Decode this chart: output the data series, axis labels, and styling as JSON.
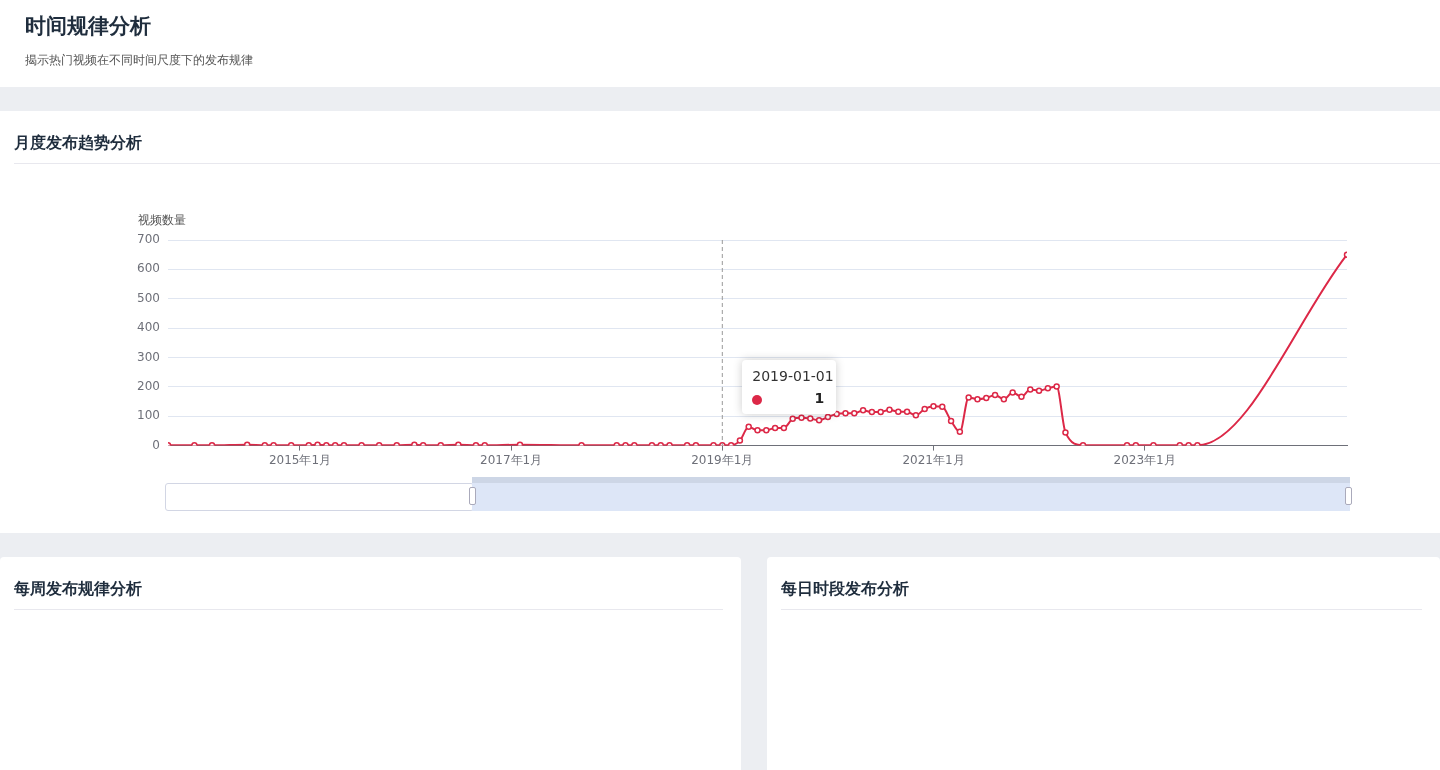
{
  "chart_data": [
    {
      "type": "other",
      "title": "时间规律分析",
      "subtitle": "揭示热门视频在不同时间尺度下的发布规律"
    },
    {
      "type": "line",
      "title": "月度发布趋势分析",
      "ylabel": "视频数量",
      "x": [
        "2013-10",
        "2014-01",
        "2014-03",
        "2014-07",
        "2014-09",
        "2014-10",
        "2014-12",
        "2015-02",
        "2015-03",
        "2015-04",
        "2015-05",
        "2015-06",
        "2015-08",
        "2015-10",
        "2015-12",
        "2016-02",
        "2016-03",
        "2016-05",
        "2016-07",
        "2016-09",
        "2016-10",
        "2017-02",
        "2017-09",
        "2018-01",
        "2018-02",
        "2018-03",
        "2018-05",
        "2018-06",
        "2018-07",
        "2018-09",
        "2018-10",
        "2018-12",
        "2019-01",
        "2019-02",
        "2019-03",
        "2019-04",
        "2019-05",
        "2019-06",
        "2019-07",
        "2019-08",
        "2019-09",
        "2019-10",
        "2019-11",
        "2019-12",
        "2020-01",
        "2020-02",
        "2020-03",
        "2020-04",
        "2020-05",
        "2020-06",
        "2020-07",
        "2020-08",
        "2020-09",
        "2020-10",
        "2020-11",
        "2020-12",
        "2021-01",
        "2021-02",
        "2021-03",
        "2021-04",
        "2021-05",
        "2021-06",
        "2021-07",
        "2021-08",
        "2021-09",
        "2021-10",
        "2021-11",
        "2021-12",
        "2022-01",
        "2022-02",
        "2022-03",
        "2022-04",
        "2022-06",
        "2022-11",
        "2022-12",
        "2023-02",
        "2023-05",
        "2023-06",
        "2023-07",
        "2024-12"
      ],
      "series": [
        {
          "color": "#dc2847",
          "values": [
            1,
            1,
            1,
            3,
            1,
            1,
            1,
            1,
            3,
            1,
            1,
            1,
            1,
            1,
            1,
            3,
            1,
            1,
            3,
            1,
            1,
            3,
            1,
            1,
            1,
            1,
            1,
            1,
            1,
            1,
            1,
            1,
            1,
            1,
            17,
            64,
            52,
            52,
            60,
            60,
            91,
            95,
            92,
            86,
            97,
            108,
            110,
            110,
            120,
            114,
            114,
            122,
            115,
            115,
            103,
            125,
            134,
            132,
            84,
            47,
            164,
            158,
            162,
            172,
            158,
            181,
            166,
            191,
            187,
            195,
            201,
            45,
            1,
            1,
            1,
            1,
            1,
            1,
            1,
            650
          ]
        }
      ],
      "xlim": [
        "2013-10",
        "2024-12"
      ],
      "xticks": [
        {
          "value": "2015-01",
          "label": "2015年1月"
        },
        {
          "value": "2017-01",
          "label": "2017年1月"
        },
        {
          "value": "2019-01",
          "label": "2019年1月"
        },
        {
          "value": "2021-01",
          "label": "2021年1月"
        },
        {
          "value": "2023-01",
          "label": "2023年1月"
        }
      ],
      "ylim": [
        0,
        700
      ],
      "yticks": [
        0,
        100,
        200,
        300,
        400,
        500,
        600,
        700
      ],
      "grid": "y",
      "marker": "circle",
      "legend": false,
      "ref_lines": [
        {
          "axis": "x",
          "value": "2019-01",
          "line_style": "dashed",
          "color": "#999999"
        }
      ],
      "annotations": [
        "2019-01-01",
        "1"
      ]
    },
    {
      "type": "other",
      "title": "每周发布规律分析"
    },
    {
      "type": "other",
      "title": "每日时段发布分析"
    }
  ]
}
